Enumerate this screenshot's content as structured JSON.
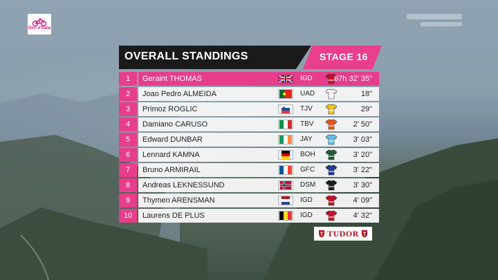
{
  "brand": {
    "logo_text": "Giro d'Italia"
  },
  "header": {
    "title": "OVERALL STANDINGS",
    "stage": "STAGE 16"
  },
  "standings": [
    {
      "pos": "1",
      "rider": "Geraint THOMAS",
      "country": "gb",
      "team": "IGD",
      "time": "67h 32' 35\"",
      "jersey": "#c8102e"
    },
    {
      "pos": "2",
      "rider": "Joao Pedro ALMEIDA",
      "country": "pt",
      "team": "UAD",
      "time": "18\"",
      "jersey": "#f2f2f2"
    },
    {
      "pos": "3",
      "rider": "Primoz ROGLIC",
      "country": "si",
      "team": "TJV",
      "time": "29\"",
      "jersey": "#f7c21a"
    },
    {
      "pos": "4",
      "rider": "Damiano CARUSO",
      "country": "it",
      "team": "TBV",
      "time": "2' 50\"",
      "jersey": "#e2591b"
    },
    {
      "pos": "5",
      "rider": "Edward DUNBAR",
      "country": "ie",
      "team": "JAY",
      "time": "3' 03\"",
      "jersey": "#5fc0e8"
    },
    {
      "pos": "6",
      "rider": "Lennard KAMNA",
      "country": "de",
      "team": "BOH",
      "time": "3' 20\"",
      "jersey": "#1f5c3a"
    },
    {
      "pos": "7",
      "rider": "Bruno ARMIRAIL",
      "country": "fr",
      "team": "GFC",
      "time": "3' 22\"",
      "jersey": "#1e3a8a"
    },
    {
      "pos": "8",
      "rider": "Andreas LEKNESSUND",
      "country": "no",
      "team": "DSM",
      "time": "3' 30\"",
      "jersey": "#1b1b1b"
    },
    {
      "pos": "9",
      "rider": "Thymen ARENSMAN",
      "country": "nl",
      "team": "IGD",
      "time": "4' 09\"",
      "jersey": "#c8102e"
    },
    {
      "pos": "10",
      "rider": "Laurens DE PLUS",
      "country": "be",
      "team": "IGD",
      "time": "4' 32\"",
      "jersey": "#c8102e"
    }
  ],
  "sponsor": {
    "name": "TUDOR"
  },
  "colors": {
    "accent_pink": "#e83d8b",
    "header_black": "#1a1a1a"
  }
}
